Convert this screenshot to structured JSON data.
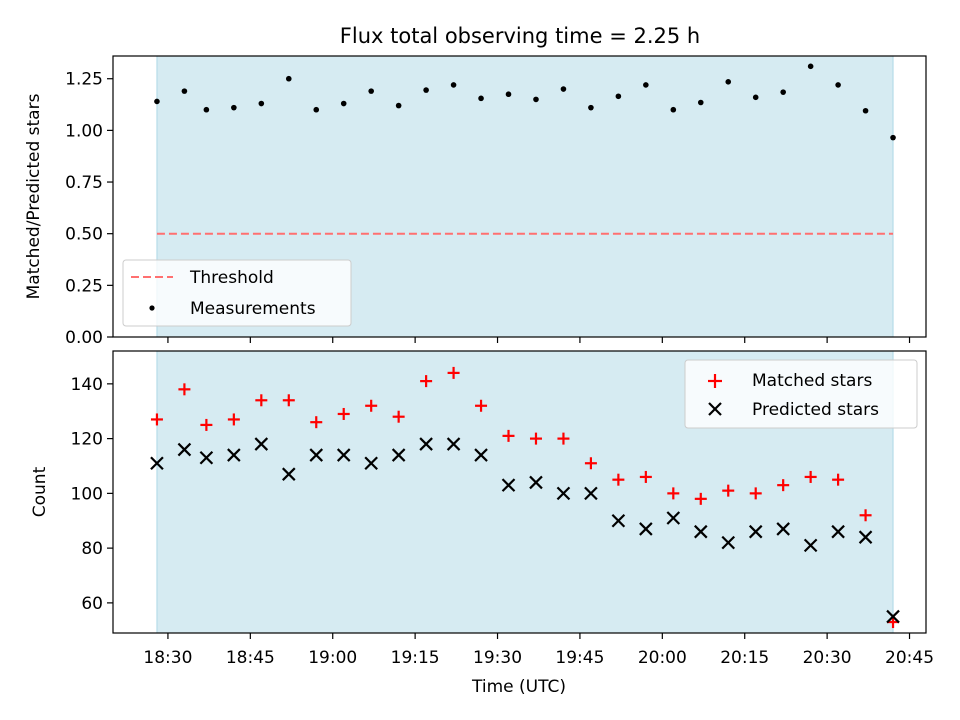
{
  "title": "Flux total observing time = 2.25 h",
  "colors": {
    "shade": "#add8e6",
    "threshold": "#ff7070",
    "measurement": "#000000",
    "matched": "#ff0000",
    "predicted": "#000000"
  },
  "chart_data": [
    {
      "type": "scatter",
      "ylabel": "Matched/Predicted stars",
      "ylim": [
        0,
        1.36
      ],
      "yticks": [
        0.0,
        0.25,
        0.5,
        0.75,
        1.0,
        1.25
      ],
      "ytick_labels": [
        "0.00",
        "0.25",
        "0.50",
        "0.75",
        "1.00",
        "1.25"
      ],
      "x": [
        "18:28",
        "18:33",
        "18:37",
        "18:42",
        "18:47",
        "18:52",
        "18:57",
        "19:02",
        "19:07",
        "19:12",
        "19:17",
        "19:22",
        "19:27",
        "19:32",
        "19:37",
        "19:42",
        "19:47",
        "19:52",
        "19:57",
        "20:02",
        "20:07",
        "20:12",
        "20:17",
        "20:22",
        "20:27",
        "20:32",
        "20:37",
        "20:42"
      ],
      "series": [
        {
          "name": "Measurements",
          "values": [
            1.14,
            1.19,
            1.1,
            1.11,
            1.13,
            1.25,
            1.1,
            1.13,
            1.19,
            1.12,
            1.195,
            1.22,
            1.155,
            1.175,
            1.15,
            1.2,
            1.11,
            1.165,
            1.22,
            1.1,
            1.135,
            1.235,
            1.16,
            1.185,
            1.31,
            1.22,
            1.095,
            0.965
          ]
        }
      ],
      "threshold": {
        "name": "Threshold",
        "value": 0.5
      },
      "shaded_range": [
        "18:28",
        "20:42"
      ],
      "legend": "lower-left"
    },
    {
      "type": "scatter",
      "xlabel": "Time (UTC)",
      "ylabel": "Count",
      "ylim": [
        49,
        152
      ],
      "yticks": [
        60,
        80,
        100,
        120,
        140
      ],
      "ytick_labels": [
        "60",
        "80",
        "100",
        "120",
        "140"
      ],
      "xticks": [
        "18:30",
        "18:45",
        "19:00",
        "19:15",
        "19:30",
        "19:45",
        "20:00",
        "20:15",
        "20:30",
        "20:45"
      ],
      "xlim": [
        "18:20",
        "20:48"
      ],
      "x": [
        "18:28",
        "18:33",
        "18:37",
        "18:42",
        "18:47",
        "18:52",
        "18:57",
        "19:02",
        "19:07",
        "19:12",
        "19:17",
        "19:22",
        "19:27",
        "19:32",
        "19:37",
        "19:42",
        "19:47",
        "19:52",
        "19:57",
        "20:02",
        "20:07",
        "20:12",
        "20:17",
        "20:22",
        "20:27",
        "20:32",
        "20:37",
        "20:42"
      ],
      "series": [
        {
          "name": "Matched stars",
          "marker": "+",
          "values": [
            127,
            138,
            125,
            127,
            134,
            134,
            126,
            129,
            132,
            128,
            141,
            144,
            132,
            121,
            120,
            120,
            111,
            105,
            106,
            100,
            98,
            101,
            100,
            103,
            106,
            105,
            92,
            53
          ]
        },
        {
          "name": "Predicted stars",
          "marker": "x",
          "values": [
            111,
            116,
            113,
            114,
            118,
            107,
            114,
            114,
            111,
            114,
            118,
            118,
            114,
            103,
            104,
            100,
            100,
            90,
            87,
            91,
            86,
            82,
            86,
            87,
            81,
            86,
            84,
            55
          ]
        }
      ],
      "shaded_range": [
        "18:28",
        "20:42"
      ],
      "legend": "top-right"
    }
  ]
}
